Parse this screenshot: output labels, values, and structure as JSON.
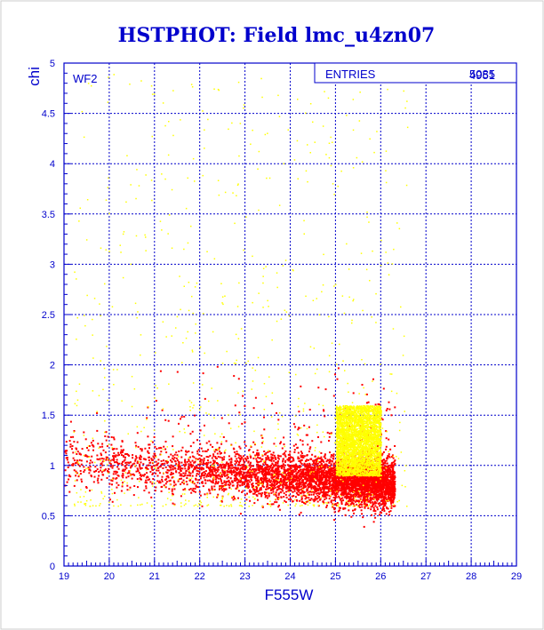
{
  "colors": {
    "axis": "#0000cc",
    "grid": "#0000cc",
    "good_points": "#ff0000",
    "flagged_points": "#ffff00",
    "background": "#ffffff"
  },
  "chart_data": {
    "type": "scatter",
    "title": "HSTPHOT: Field lmc_u4zn07",
    "xlabel": "F555W",
    "ylabel": "chi",
    "xlim": [
      19,
      29
    ],
    "ylim": [
      0,
      5
    ],
    "x_ticks": [
      "19",
      "20",
      "21",
      "22",
      "23",
      "24",
      "25",
      "26",
      "27",
      "28",
      "29"
    ],
    "y_ticks": [
      "0",
      "0.5",
      "1",
      "1.5",
      "2",
      "2.5",
      "3",
      "3.5",
      "4",
      "4.5",
      "5"
    ],
    "grid": true,
    "panel_label": "WF2",
    "stats_box": {
      "label": "ENTRIES",
      "value": "5085",
      "value_overlap": "4951",
      "placement": "top-right"
    },
    "series": [
      {
        "color": "#ff0000",
        "count_shown": 5085,
        "distribution": {
          "x_range": [
            19.0,
            26.3
          ],
          "y_center_at_bright": 1.05,
          "y_center_at_faint": 0.82,
          "y_spread": 0.12,
          "density_peak_x": 25.6
        }
      },
      {
        "color": "#ffff00",
        "count_shown": 4951,
        "distribution": {
          "x_range": [
            19.2,
            26.6
          ],
          "y_range": [
            0.6,
            4.9
          ],
          "concentration_x": [
            25.0,
            26.0
          ],
          "concentration_y": [
            0.9,
            1.6
          ]
        }
      }
    ]
  }
}
